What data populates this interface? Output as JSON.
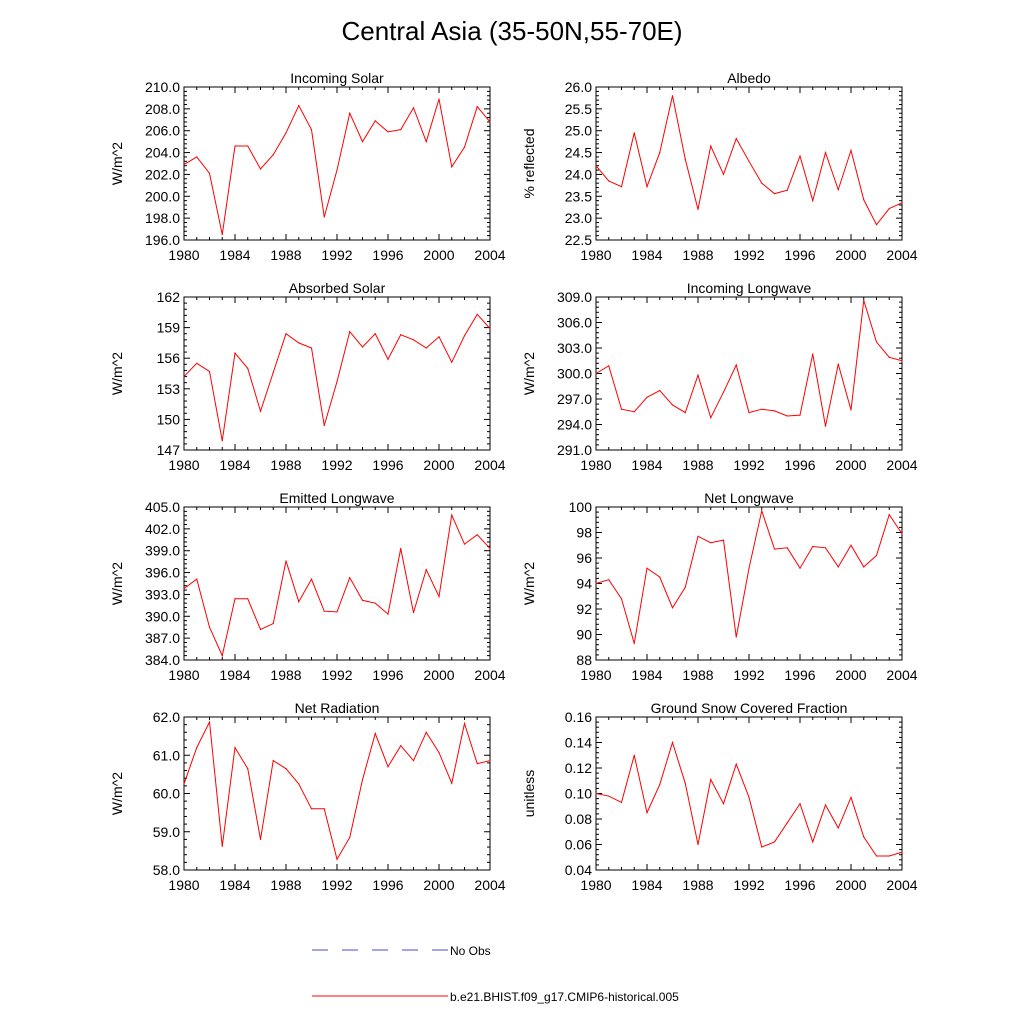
{
  "title": "Central Asia (35-50N,55-70E)",
  "colors": {
    "model": "#ff0000",
    "obs": "#4b4bd2",
    "axes": "#000000"
  },
  "legend": {
    "obs_label": "No Obs",
    "model_label": "b.e21.BHIST.f09_g17.CMIP6-historical.005"
  },
  "chart_data": [
    {
      "type": "line",
      "title": "Incoming Solar",
      "ylabel": "W/m^2",
      "x": [
        1980,
        1981,
        1982,
        1983,
        1984,
        1985,
        1986,
        1987,
        1988,
        1989,
        1990,
        1991,
        1992,
        1993,
        1994,
        1995,
        1996,
        1997,
        1998,
        1999,
        2000,
        2001,
        2002,
        2003,
        2004
      ],
      "xticks": [
        "1980",
        "1984",
        "1988",
        "1992",
        "1996",
        "2000",
        "2004"
      ],
      "xlim": [
        1980,
        2004
      ],
      "ylim": [
        196.0,
        210.0
      ],
      "yticks": [
        "196.0",
        "198.0",
        "200.0",
        "202.0",
        "204.0",
        "206.0",
        "208.0",
        "210.0"
      ],
      "series": [
        {
          "name": "b.e21.BHIST.f09_g17.CMIP6-historical.005",
          "values": [
            202.9,
            203.6,
            202.1,
            196.5,
            204.6,
            204.6,
            202.5,
            203.8,
            205.8,
            208.3,
            206.1,
            198.1,
            202.4,
            207.6,
            205.0,
            206.9,
            205.9,
            206.1,
            208.1,
            205.0,
            208.9,
            202.7,
            204.5,
            208.2,
            206.8
          ]
        }
      ]
    },
    {
      "type": "line",
      "title": "Albedo",
      "ylabel": "% reflected",
      "x": [
        1980,
        1981,
        1982,
        1983,
        1984,
        1985,
        1986,
        1987,
        1988,
        1989,
        1990,
        1991,
        1992,
        1993,
        1994,
        1995,
        1996,
        1997,
        1998,
        1999,
        2000,
        2001,
        2002,
        2003,
        2004
      ],
      "xticks": [
        "1980",
        "1984",
        "1988",
        "1992",
        "1996",
        "2000",
        "2004"
      ],
      "xlim": [
        1980,
        2004
      ],
      "ylim": [
        22.5,
        26.0
      ],
      "yticks": [
        "22.5",
        "23.0",
        "23.5",
        "24.0",
        "24.5",
        "25.0",
        "25.5",
        "26.0"
      ],
      "series": [
        {
          "name": "b.e21.BHIST.f09_g17.CMIP6-historical.005",
          "values": [
            24.2,
            23.85,
            23.72,
            24.95,
            23.72,
            24.5,
            25.8,
            24.35,
            23.2,
            24.65,
            24.0,
            24.82,
            24.3,
            23.8,
            23.56,
            23.64,
            24.42,
            23.4,
            24.5,
            23.65,
            24.55,
            23.42,
            22.85,
            23.22,
            23.35
          ]
        }
      ]
    },
    {
      "type": "line",
      "title": "Absorbed Solar",
      "ylabel": "W/m^2",
      "x": [
        1980,
        1981,
        1982,
        1983,
        1984,
        1985,
        1986,
        1987,
        1988,
        1989,
        1990,
        1991,
        1992,
        1993,
        1994,
        1995,
        1996,
        1997,
        1998,
        1999,
        2000,
        2001,
        2002,
        2003,
        2004
      ],
      "xticks": [
        "1980",
        "1984",
        "1988",
        "1992",
        "1996",
        "2000",
        "2004"
      ],
      "xlim": [
        1980,
        2004
      ],
      "ylim": [
        147,
        162
      ],
      "yticks": [
        "147",
        "150",
        "153",
        "156",
        "159",
        "162"
      ],
      "series": [
        {
          "name": "b.e21.BHIST.f09_g17.CMIP6-historical.005",
          "values": [
            154.2,
            155.5,
            154.7,
            147.9,
            156.5,
            155.0,
            150.8,
            154.6,
            158.4,
            157.5,
            157.0,
            149.4,
            153.7,
            158.6,
            157.1,
            158.4,
            155.9,
            158.3,
            157.8,
            157.0,
            158.1,
            155.6,
            158.2,
            160.3,
            158.9
          ]
        }
      ]
    },
    {
      "type": "line",
      "title": "Incoming Longwave",
      "ylabel": "W/m^2",
      "x": [
        1980,
        1981,
        1982,
        1983,
        1984,
        1985,
        1986,
        1987,
        1988,
        1989,
        1990,
        1991,
        1992,
        1993,
        1994,
        1995,
        1996,
        1997,
        1998,
        1999,
        2000,
        2001,
        2002,
        2003,
        2004
      ],
      "xticks": [
        "1980",
        "1984",
        "1988",
        "1992",
        "1996",
        "2000",
        "2004"
      ],
      "xlim": [
        1980,
        2004
      ],
      "ylim": [
        291.0,
        309.0
      ],
      "yticks": [
        "291.0",
        "294.0",
        "297.0",
        "300.0",
        "303.0",
        "306.0",
        "309.0"
      ],
      "series": [
        {
          "name": "b.e21.BHIST.f09_g17.CMIP6-historical.005",
          "values": [
            300.0,
            300.9,
            295.8,
            295.5,
            297.2,
            298.0,
            296.3,
            295.4,
            299.8,
            294.8,
            297.8,
            301.0,
            295.4,
            295.8,
            295.6,
            295.0,
            295.1,
            302.3,
            293.8,
            301.1,
            295.7,
            308.6,
            303.7,
            301.9,
            301.5
          ]
        }
      ]
    },
    {
      "type": "line",
      "title": "Emitted Longwave",
      "ylabel": "W/m^2",
      "x": [
        1980,
        1981,
        1982,
        1983,
        1984,
        1985,
        1986,
        1987,
        1988,
        1989,
        1990,
        1991,
        1992,
        1993,
        1994,
        1995,
        1996,
        1997,
        1998,
        1999,
        2000,
        2001,
        2002,
        2003,
        2004
      ],
      "xticks": [
        "1980",
        "1984",
        "1988",
        "1992",
        "1996",
        "2000",
        "2004"
      ],
      "xlim": [
        1980,
        2004
      ],
      "ylim": [
        384.0,
        405.0
      ],
      "yticks": [
        "384.0",
        "387.0",
        "390.0",
        "393.0",
        "396.0",
        "399.0",
        "402.0",
        "405.0"
      ],
      "series": [
        {
          "name": "b.e21.BHIST.f09_g17.CMIP6-historical.005",
          "values": [
            393.8,
            395.1,
            388.5,
            384.6,
            392.4,
            392.4,
            388.2,
            389.0,
            397.6,
            392.0,
            395.1,
            390.7,
            390.6,
            395.3,
            392.2,
            391.8,
            390.3,
            399.3,
            390.5,
            396.4,
            392.7,
            403.9,
            399.9,
            401.2,
            399.3
          ]
        }
      ]
    },
    {
      "type": "line",
      "title": "Net Longwave",
      "ylabel": "W/m^2",
      "x": [
        1980,
        1981,
        1982,
        1983,
        1984,
        1985,
        1986,
        1987,
        1988,
        1989,
        1990,
        1991,
        1992,
        1993,
        1994,
        1995,
        1996,
        1997,
        1998,
        1999,
        2000,
        2001,
        2002,
        2003,
        2004
      ],
      "xticks": [
        "1980",
        "1984",
        "1988",
        "1992",
        "1996",
        "2000",
        "2004"
      ],
      "xlim": [
        1980,
        2004
      ],
      "ylim": [
        88,
        100
      ],
      "yticks": [
        "88",
        "90",
        "92",
        "94",
        "96",
        "98",
        "100"
      ],
      "series": [
        {
          "name": "b.e21.BHIST.f09_g17.CMIP6-historical.005",
          "values": [
            94.0,
            94.3,
            92.8,
            89.3,
            95.2,
            94.5,
            92.1,
            93.7,
            97.7,
            97.2,
            97.4,
            89.8,
            95.2,
            99.7,
            96.7,
            96.8,
            95.2,
            96.9,
            96.8,
            95.3,
            97.0,
            95.3,
            96.2,
            99.4,
            97.9
          ]
        }
      ]
    },
    {
      "type": "line",
      "title": "Net Radiation",
      "ylabel": "W/m^2",
      "x": [
        1980,
        1981,
        1982,
        1983,
        1984,
        1985,
        1986,
        1987,
        1988,
        1989,
        1990,
        1991,
        1992,
        1993,
        1994,
        1995,
        1996,
        1997,
        1998,
        1999,
        2000,
        2001,
        2002,
        2003,
        2004
      ],
      "xticks": [
        "1980",
        "1984",
        "1988",
        "1992",
        "1996",
        "2000",
        "2004"
      ],
      "xlim": [
        1980,
        2004
      ],
      "ylim": [
        58.0,
        62.0
      ],
      "yticks": [
        "58.0",
        "59.0",
        "60.0",
        "61.0",
        "62.0"
      ],
      "series": [
        {
          "name": "b.e21.BHIST.f09_g17.CMIP6-historical.005",
          "values": [
            60.25,
            61.2,
            61.87,
            58.62,
            61.2,
            60.65,
            58.8,
            60.86,
            60.65,
            60.25,
            59.6,
            59.6,
            58.28,
            58.85,
            60.36,
            61.57,
            60.7,
            61.25,
            60.86,
            61.6,
            61.07,
            60.27,
            61.83,
            60.78,
            60.86
          ]
        }
      ]
    },
    {
      "type": "line",
      "title": "Ground Snow Covered Fraction",
      "ylabel": "unitless",
      "x": [
        1980,
        1981,
        1982,
        1983,
        1984,
        1985,
        1986,
        1987,
        1988,
        1989,
        1990,
        1991,
        1992,
        1993,
        1994,
        1995,
        1996,
        1997,
        1998,
        1999,
        2000,
        2001,
        2002,
        2003,
        2004
      ],
      "xticks": [
        "1980",
        "1984",
        "1988",
        "1992",
        "1996",
        "2000",
        "2004"
      ],
      "xlim": [
        1980,
        2004
      ],
      "ylim": [
        0.04,
        0.16
      ],
      "yticks": [
        "0.04",
        "0.06",
        "0.08",
        "0.10",
        "0.12",
        "0.14",
        "0.16"
      ],
      "series": [
        {
          "name": "b.e21.BHIST.f09_g17.CMIP6-historical.005",
          "values": [
            0.1,
            0.098,
            0.093,
            0.13,
            0.085,
            0.107,
            0.14,
            0.108,
            0.06,
            0.111,
            0.092,
            0.123,
            0.097,
            0.058,
            0.062,
            0.077,
            0.092,
            0.062,
            0.091,
            0.073,
            0.097,
            0.066,
            0.051,
            0.051,
            0.054
          ]
        }
      ]
    }
  ]
}
